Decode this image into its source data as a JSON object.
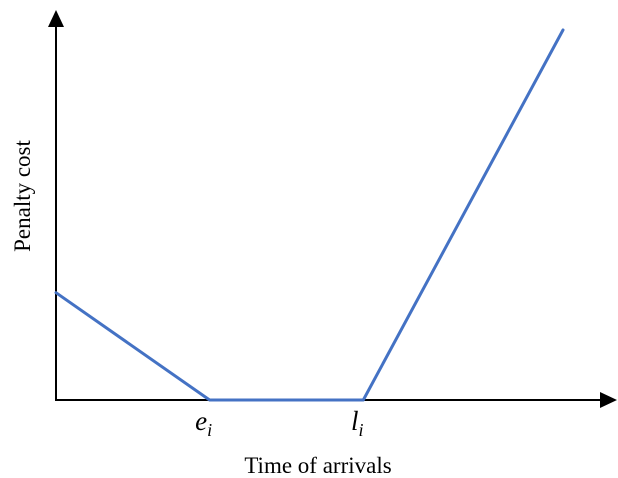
{
  "chart_data": {
    "type": "line",
    "xlabel": "Time of arrivals",
    "ylabel": "Penalty cost",
    "x_ticks": [
      {
        "main": "e",
        "sub": "i"
      },
      {
        "main": "l",
        "sub": "i"
      }
    ],
    "x_tick_values": [
      1,
      2
    ],
    "xlim": [
      0,
      3.3
    ],
    "ylim": [
      0,
      1
    ],
    "grid": false,
    "series": [
      {
        "x": [
          0,
          1,
          2,
          3.3
        ],
        "y": [
          0.29,
          0,
          0,
          1
        ],
        "color": "#4472c4"
      }
    ]
  },
  "colors": {
    "axis": "#000000",
    "series": "#4472c4",
    "background": "#ffffff"
  }
}
